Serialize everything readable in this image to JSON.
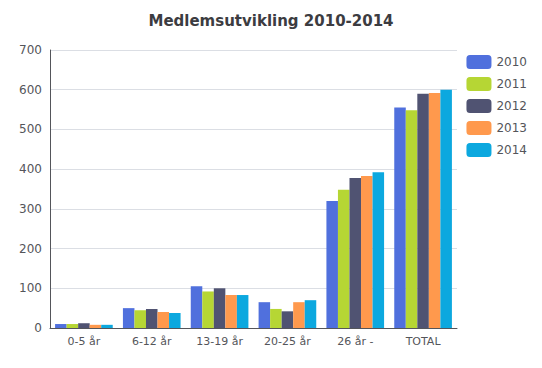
{
  "chart_data": {
    "type": "bar",
    "title": "Medlemsutvikling 2010-2014",
    "categories": [
      "0-5 år",
      "6-12 år",
      "13-19 år",
      "20-25 år",
      "26 år -",
      "TOTAL"
    ],
    "series": [
      {
        "name": "2010",
        "values": [
          10,
          50,
          105,
          65,
          320,
          555
        ]
      },
      {
        "name": "2011",
        "values": [
          10,
          45,
          92,
          48,
          348,
          548
        ]
      },
      {
        "name": "2012",
        "values": [
          12,
          48,
          100,
          42,
          378,
          590
        ]
      },
      {
        "name": "2013",
        "values": [
          8,
          40,
          83,
          65,
          383,
          592
        ]
      },
      {
        "name": "2014",
        "values": [
          8,
          38,
          83,
          70,
          392,
          600
        ]
      }
    ],
    "ylim": [
      0,
      700
    ],
    "yticks": [
      0,
      100,
      200,
      300,
      400,
      500,
      600,
      700
    ],
    "grid": true,
    "legend": "right"
  }
}
